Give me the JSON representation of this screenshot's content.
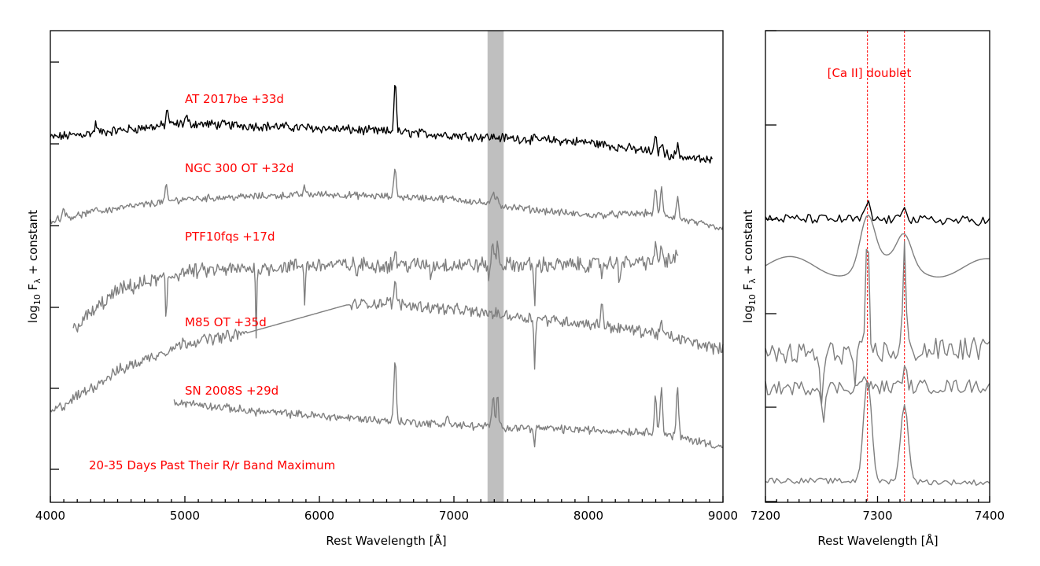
{
  "chart_data": [
    {
      "type": "line",
      "xlabel": "Rest Wavelength [Å]",
      "ylabel": "log10 F λ + constant",
      "xlim": [
        4000,
        9000
      ],
      "x_ticks": [
        "4000",
        "5000",
        "6000",
        "7000",
        "8000",
        "9000"
      ],
      "shaded_band": [
        7250,
        7370
      ],
      "shaded_color": "#bfbfbf",
      "annotation": "20-35 Days Past Their R/r Band Maximum",
      "series": [
        {
          "name": "AT 2017be +33d",
          "color": "#000000",
          "x_range": [
            4000,
            8920
          ],
          "baseline": [
            [
              4000,
              5.25
            ],
            [
              5000,
              5.55
            ],
            [
              6000,
              5.45
            ],
            [
              7000,
              5.3
            ],
            [
              8000,
              5.15
            ],
            [
              8920,
              4.75
            ]
          ],
          "lines": [
            [
              4870,
              0.35
            ],
            [
              6563,
              1.1
            ],
            [
              8498,
              0.3
            ],
            [
              8542,
              0.25
            ],
            [
              8662,
              0.2
            ],
            [
              4340,
              0.2
            ],
            [
              5010,
              0.15
            ]
          ],
          "noise": 0.08
        },
        {
          "name": "NGC 300 OT +32d",
          "color": "#7f7f7f",
          "x_range": [
            4000,
            9000
          ],
          "baseline": [
            [
              4000,
              3.5
            ],
            [
              4500,
              3.75
            ],
            [
              5000,
              3.95
            ],
            [
              6000,
              4.05
            ],
            [
              7000,
              3.95
            ],
            [
              7500,
              3.75
            ],
            [
              8000,
              3.6
            ],
            [
              8500,
              3.65
            ],
            [
              9000,
              3.3
            ]
          ],
          "lines": [
            [
              4100,
              0.25
            ],
            [
              4340,
              0.15
            ],
            [
              4861,
              0.3
            ],
            [
              6563,
              0.65
            ],
            [
              7291,
              0.25
            ],
            [
              7324,
              0.2
            ],
            [
              8498,
              0.5
            ],
            [
              8542,
              0.55
            ],
            [
              8662,
              0.45
            ],
            [
              5890,
              0.15
            ]
          ],
          "noise": 0.06
        },
        {
          "name": "PTF10fqs +17d",
          "color": "#7f7f7f",
          "x_range": [
            4170,
            8670
          ],
          "baseline": [
            [
              4170,
              1.2
            ],
            [
              4500,
              2.0
            ],
            [
              5000,
              2.4
            ],
            [
              6000,
              2.55
            ],
            [
              7000,
              2.55
            ],
            [
              8000,
              2.55
            ],
            [
              8670,
              2.65
            ]
          ],
          "lines": [
            [
              6563,
              0.3
            ],
            [
              7291,
              0.45
            ],
            [
              7324,
              0.45
            ],
            [
              8498,
              0.25
            ],
            [
              8542,
              0.3
            ],
            [
              8662,
              0.2
            ]
          ],
          "absorptions": [
            [
              4861,
              1.0
            ],
            [
              5530,
              1.3
            ],
            [
              5890,
              0.75
            ],
            [
              6280,
              0.3
            ],
            [
              6830,
              0.3
            ],
            [
              7260,
              0.3
            ],
            [
              7600,
              0.9
            ],
            [
              8100,
              0.2
            ],
            [
              8230,
              0.35
            ]
          ],
          "noise": 0.13
        },
        {
          "name": "M85 OT +35d",
          "color": "#7f7f7f",
          "x_range": [
            4000,
            9000
          ],
          "baseline": [
            [
              4000,
              -0.6
            ],
            [
              4500,
              0.3
            ],
            [
              5000,
              0.9
            ],
            [
              5450,
              1.1
            ],
            [
              6200,
              1.7
            ],
            [
              6500,
              1.75
            ],
            [
              7000,
              1.6
            ],
            [
              7500,
              1.45
            ],
            [
              8000,
              1.3
            ],
            [
              8500,
              1.1
            ],
            [
              9000,
              0.75
            ]
          ],
          "lines": [
            [
              6563,
              0.45
            ],
            [
              8100,
              0.5
            ],
            [
              8542,
              0.25
            ]
          ],
          "absorptions": [
            [
              7600,
              1.1
            ]
          ],
          "smooth_range": [
            5470,
            6230
          ],
          "noise": 0.1
        },
        {
          "name": "SN 2008S +29d",
          "color": "#7f7f7f",
          "x_range": [
            4920,
            9000
          ],
          "baseline": [
            [
              4920,
              -0.35
            ],
            [
              5500,
              -0.55
            ],
            [
              6000,
              -0.65
            ],
            [
              7000,
              -0.85
            ],
            [
              8000,
              -0.95
            ],
            [
              8500,
              -1.0
            ],
            [
              9000,
              -1.3
            ]
          ],
          "lines": [
            [
              6563,
              1.35
            ],
            [
              7291,
              0.65
            ],
            [
              7324,
              0.6
            ],
            [
              8498,
              0.8
            ],
            [
              8542,
              1.0
            ],
            [
              8662,
              1.05
            ],
            [
              6950,
              0.25
            ]
          ],
          "absorptions": [
            [
              7600,
              0.4
            ]
          ],
          "noise": 0.07
        }
      ]
    },
    {
      "type": "line",
      "xlabel": "Rest Wavelength [Å]",
      "ylabel": "log10 F λ + constant",
      "xlim": [
        7200,
        7400
      ],
      "x_ticks": [
        "7200",
        "7300",
        "7400"
      ],
      "vlines": [
        7291,
        7324
      ],
      "vline_color": "#ff0000",
      "annotation": "[Ca II] doublet",
      "series": [
        {
          "color": "#000000",
          "baseline": [
            [
              7200,
              3.2
            ],
            [
              7400,
              3.15
            ]
          ],
          "peaks": [
            [
              7291,
              0.35,
              3
            ],
            [
              7324,
              0.35,
              3
            ]
          ],
          "noise": 0.1
        },
        {
          "color": "#7f7f7f",
          "baseline": [
            [
              7200,
              2.2
            ],
            [
              7400,
              2.15
            ]
          ],
          "peaks": [
            [
              7291,
              1.05,
              9
            ],
            [
              7324,
              0.6,
              9
            ]
          ],
          "wave": 0.2
        },
        {
          "color": "#7f7f7f",
          "baseline": [
            [
              7200,
              0.3
            ],
            [
              7400,
              0.45
            ]
          ],
          "peaks": [
            [
              7291,
              2.5,
              2
            ],
            [
              7324,
              2.2,
              2
            ]
          ],
          "absorptions": [
            [
              7250,
              1.2
            ],
            [
              7280,
              0.6
            ]
          ],
          "noise": 0.25
        },
        {
          "color": "#7f7f7f",
          "baseline": [
            [
              7200,
              -0.4
            ],
            [
              7400,
              -0.35
            ]
          ],
          "peaks": [
            [
              7287,
              0.3,
              2
            ],
            [
              7324,
              0.35,
              3
            ]
          ],
          "absorptions": [
            [
              7252,
              0.6
            ]
          ],
          "noise": 0.15
        },
        {
          "color": "#7f7f7f",
          "baseline": [
            [
              7200,
              -2.35
            ],
            [
              7400,
              -2.4
            ]
          ],
          "peaks": [
            [
              7291,
              2.2,
              5
            ],
            [
              7324,
              1.6,
              5
            ]
          ],
          "noise": 0.06
        }
      ]
    }
  ]
}
